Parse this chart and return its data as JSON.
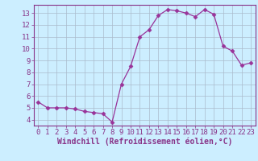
{
  "x": [
    0,
    1,
    2,
    3,
    4,
    5,
    6,
    7,
    8,
    9,
    10,
    11,
    12,
    13,
    14,
    15,
    16,
    17,
    18,
    19,
    20,
    21,
    22,
    23
  ],
  "y": [
    5.5,
    5.0,
    5.0,
    5.0,
    4.9,
    4.7,
    4.6,
    4.5,
    3.8,
    7.0,
    8.5,
    11.0,
    11.6,
    12.8,
    13.3,
    13.2,
    13.0,
    12.7,
    13.3,
    12.9,
    10.2,
    9.8,
    8.6,
    8.8
  ],
  "line_color": "#993399",
  "marker": "D",
  "marker_size": 2.5,
  "bg_color": "#cceeff",
  "grid_color": "#aabbcc",
  "xlabel": "Windchill (Refroidissement éolien,°C)",
  "ylabel_ticks": [
    4,
    5,
    6,
    7,
    8,
    9,
    10,
    11,
    12,
    13
  ],
  "xlim": [
    -0.5,
    23.5
  ],
  "ylim": [
    3.5,
    13.7
  ],
  "tick_color": "#883388",
  "label_color": "#883388",
  "spine_color": "#883388",
  "font_size": 6.5,
  "xlabel_font_size": 7
}
